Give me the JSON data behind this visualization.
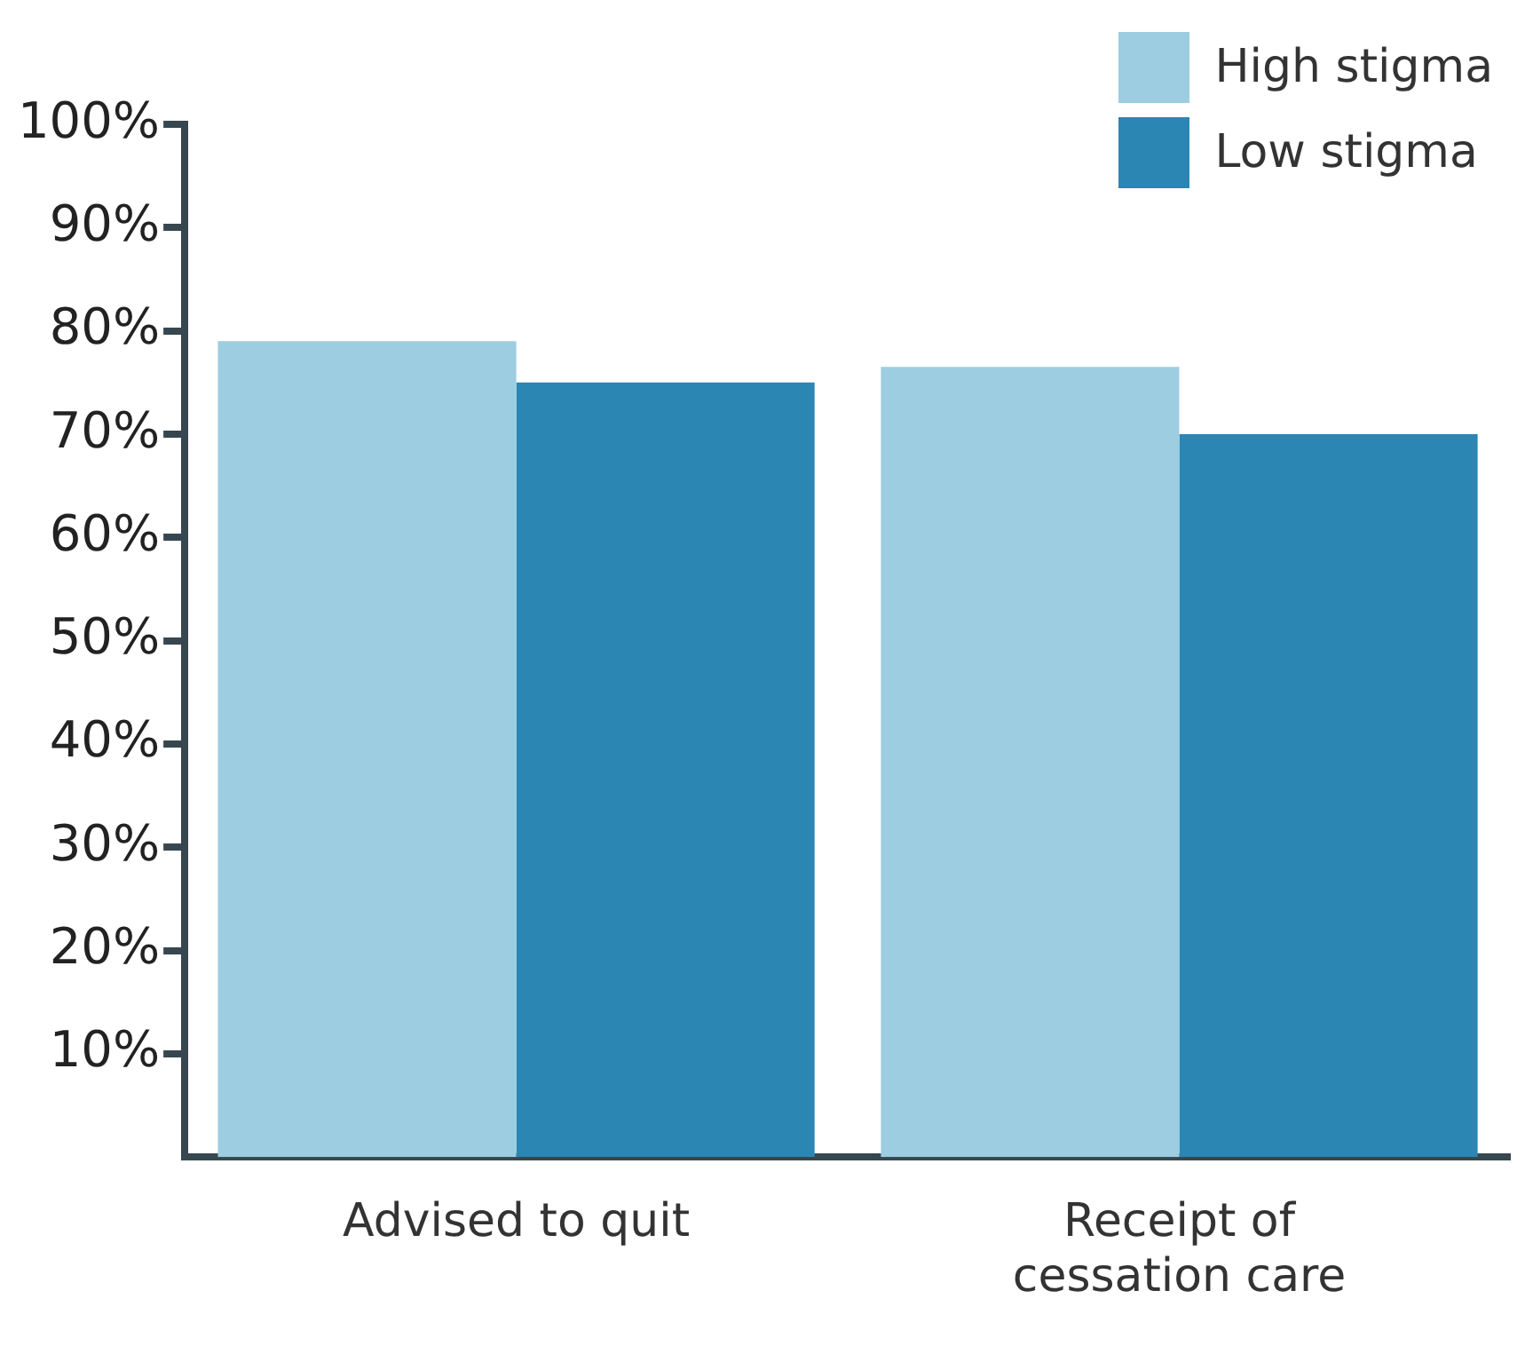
{
  "chart_data": {
    "type": "bar",
    "categories": [
      "Advised to quit",
      "Receipt of cessation care"
    ],
    "series": [
      {
        "name": "High stigma",
        "color": "#9dcde0",
        "values": [
          79,
          76.5
        ]
      },
      {
        "name": "Low stigma",
        "color": "#2b86b4",
        "values": [
          75,
          70
        ]
      }
    ],
    "ylim": [
      0,
      100
    ],
    "yticks": [
      {
        "value": 10,
        "label": "10%"
      },
      {
        "value": 20,
        "label": "20%"
      },
      {
        "value": 30,
        "label": "30%"
      },
      {
        "value": 40,
        "label": "40%"
      },
      {
        "value": 50,
        "label": "50%"
      },
      {
        "value": 60,
        "label": "60%"
      },
      {
        "value": 70,
        "label": "70%"
      },
      {
        "value": 80,
        "label": "80%"
      },
      {
        "value": 90,
        "label": "90%"
      },
      {
        "value": 100,
        "label": "100%"
      }
    ],
    "grid": false,
    "legend": "top right"
  }
}
